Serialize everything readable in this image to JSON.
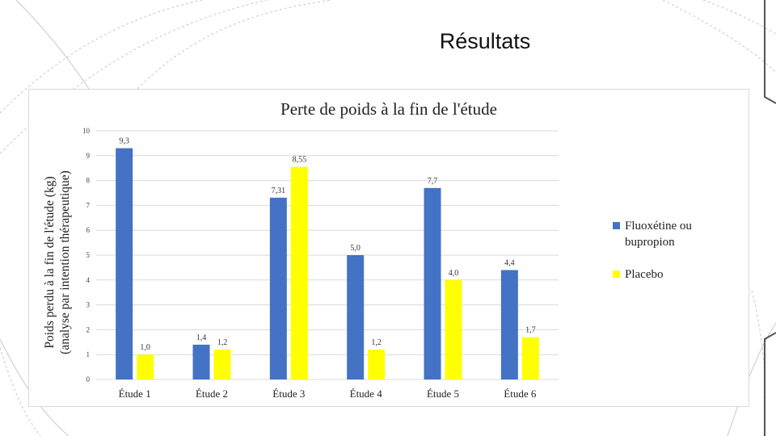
{
  "slide": {
    "title": "Résultats"
  },
  "colors": {
    "series_1": "#4472c4",
    "series_2": "#ffff00",
    "grid": "#d9d9d9",
    "decor": "#c8c8c8"
  },
  "chart_data": {
    "type": "bar",
    "title": "Perte de poids à la fin de l'étude",
    "xlabel": "",
    "ylabel": "Poids perdu à la fin de l'étude (kg)",
    "ylabel_line2": "(analyse par intention thérapeutique)",
    "categories": [
      "Étude 1",
      "Étude 2",
      "Étude 3",
      "Étude 4",
      "Étude 5",
      "Étude 6"
    ],
    "series": [
      {
        "name": "Fluoxétine ou bupropion",
        "legend_lines": [
          "Fluoxétine ou",
          "bupropion"
        ],
        "values": [
          9.3,
          1.4,
          7.31,
          5.0,
          7.7,
          4.4
        ],
        "labels": [
          "9,3",
          "1,4",
          "7,31",
          "5,0",
          "7,7",
          "4,4"
        ],
        "color": "#4472c4"
      },
      {
        "name": "Placebo",
        "legend_lines": [
          "Placebo"
        ],
        "values": [
          1.0,
          1.2,
          8.55,
          1.2,
          4.0,
          1.7
        ],
        "labels": [
          "1,0",
          "1,2",
          "8,55",
          "1,2",
          "4,0",
          "1,7"
        ],
        "color": "#ffff00"
      }
    ],
    "ylim": [
      0,
      10
    ],
    "yticks": [
      0,
      1,
      2,
      3,
      4,
      5,
      6,
      7,
      8,
      9,
      10
    ],
    "grid": true,
    "legend_position": "right"
  }
}
